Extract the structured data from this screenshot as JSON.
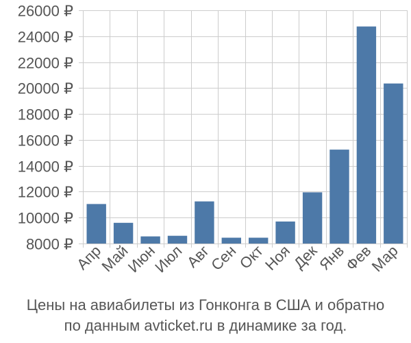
{
  "chart_data": {
    "type": "bar",
    "categories": [
      "Апр",
      "Май",
      "Июн",
      "Июл",
      "Авг",
      "Сен",
      "Окт",
      "Ноя",
      "Дек",
      "Янв",
      "Фев",
      "Мар"
    ],
    "values": [
      11050,
      9600,
      8550,
      8600,
      11250,
      8450,
      8450,
      9700,
      11950,
      15250,
      24750,
      20350
    ],
    "ylim": [
      8000,
      26000
    ],
    "yticks": [
      8000,
      10000,
      12000,
      14000,
      16000,
      18000,
      20000,
      22000,
      24000,
      26000
    ],
    "tick_suffix": " ₽",
    "grid": true,
    "legend": "none",
    "bar_color": "#4d79a8",
    "grid_color": "#cccccc",
    "title": "",
    "xlabel": "",
    "ylabel": ""
  },
  "caption": {
    "line1": "Цены на авиабилеты из Гонконга в США и обратно",
    "line2": "по данным avticket.ru в динамике за год."
  }
}
